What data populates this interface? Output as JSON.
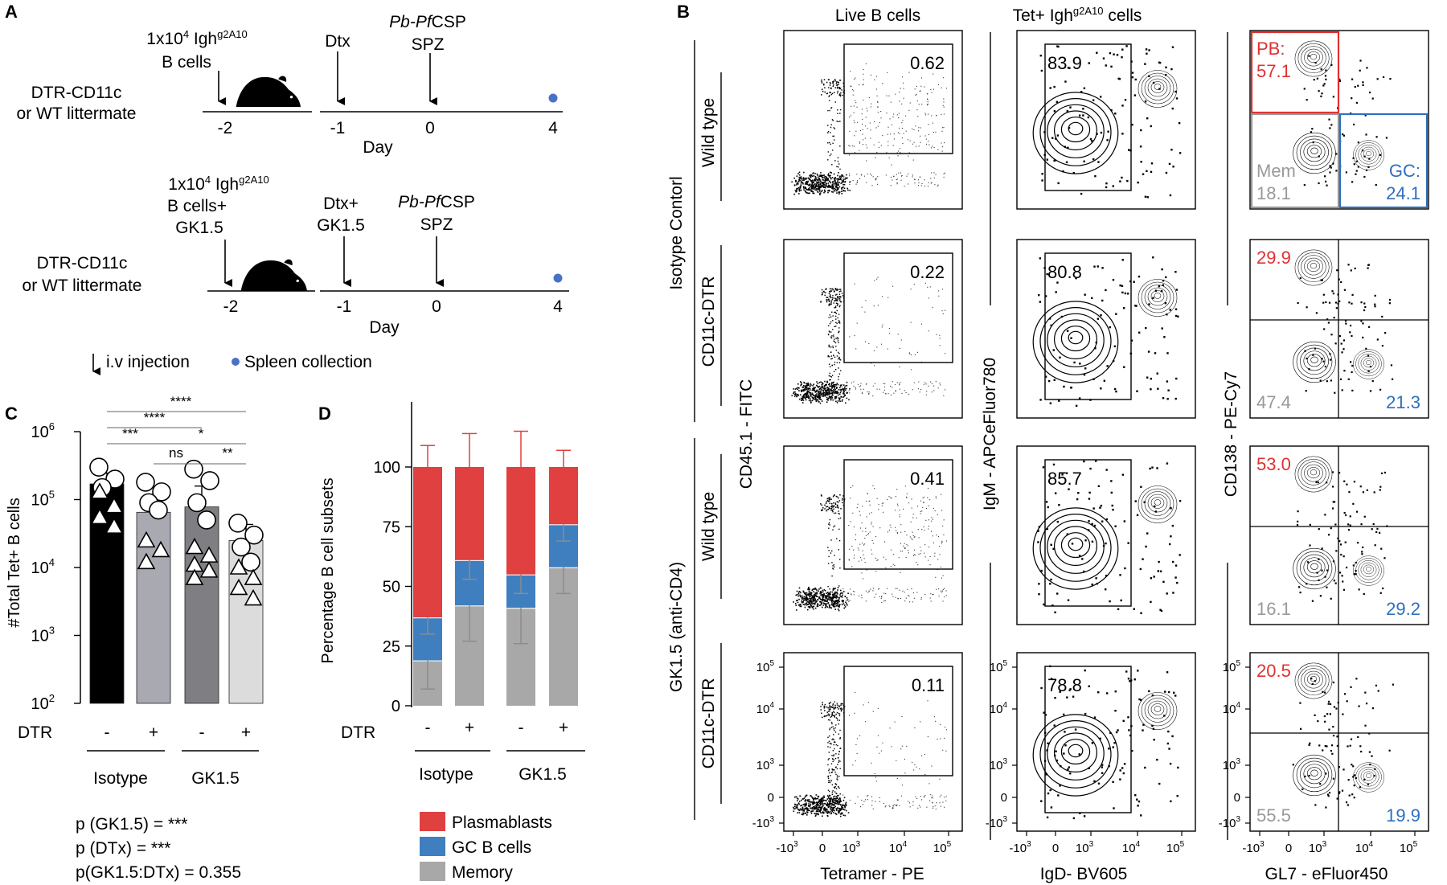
{
  "colors": {
    "plasmablast": "#e04040",
    "gc": "#3f7fbf",
    "memory": "#a8a8a8",
    "pb_text": "#e03030",
    "gc_text": "#2f6fbf",
    "mem_text": "#999999",
    "bar_fill": [
      "#000000",
      "#a9a9b1",
      "#7e7e83",
      "#dcdcdc"
    ]
  },
  "panel_a": {
    "label": "A",
    "protocol1": {
      "mouse_text": [
        "DTR-CD11c",
        "or WT littermate"
      ],
      "cells_line1": "1x10",
      "cells_exp": "4",
      "cells_igh": " Igh",
      "cells_sup": "g2A10",
      "cells_line2": "B cells",
      "dtx": "Dtx",
      "spz_pb": "Pb-",
      "spz_pf": "Pf",
      "spz_csp": "CSP",
      "spz_line2": "SPZ",
      "days": [
        "-2",
        "-1",
        "0",
        "4"
      ],
      "day_label": "Day"
    },
    "protocol2": {
      "mouse_text": [
        "DTR-CD11c",
        "or WT littermate"
      ],
      "cells_line1": "1x10",
      "cells_exp": "4",
      "cells_igh": " Igh",
      "cells_sup": "g2A10",
      "cells_line2": "B cells+",
      "cells_line3": "GK1.5",
      "dtx_line1": "Dtx+",
      "dtx_line2": "GK1.5",
      "spz_pb": "Pb-",
      "spz_pf": "Pf",
      "spz_csp": "CSP",
      "spz_line2": "SPZ",
      "days": [
        "-2",
        "-1",
        "0",
        "4"
      ],
      "day_label": "Day"
    },
    "legend": {
      "injection": "i.v injection",
      "collection": "Spleen collection"
    }
  },
  "panel_c": {
    "label": "C",
    "chart_data": {
      "type": "bar",
      "yscale": "log",
      "ylabel": "#Total Tet+ B cells",
      "ylim": [
        100,
        1000000
      ],
      "ytick_base": "10",
      "ytick_exps": [
        "2",
        "3",
        "4",
        "5",
        "6"
      ],
      "categories": [
        "Isotype -",
        "Isotype +",
        "GK1.5 -",
        "GK1.5 +"
      ],
      "values": [
        170000,
        65000,
        78000,
        25000
      ],
      "errors": [
        75000,
        30000,
        80000,
        18000
      ],
      "circles": [
        [
          300000,
          200000,
          150000
        ],
        [
          180000,
          130000,
          90000,
          70000
        ],
        [
          280000,
          190000,
          90000,
          50000
        ],
        [
          45000,
          30000,
          20000,
          12000
        ]
      ],
      "triangles": [
        [
          130000,
          80000,
          55000,
          40000
        ],
        [
          25000,
          18000,
          12000
        ],
        [
          20000,
          15000,
          11000,
          9000,
          7000
        ],
        [
          10000,
          7000,
          5000,
          3500
        ]
      ],
      "x_label_title": "DTR",
      "x_signs": [
        "-",
        "+",
        "-",
        "+"
      ],
      "groups": [
        "Isotype",
        "GK1.5"
      ],
      "significance": [
        {
          "label": "****"
        },
        {
          "label": "****"
        },
        {
          "label": "***"
        },
        {
          "label": "ns"
        },
        {
          "label": "*"
        },
        {
          "label": "**"
        }
      ],
      "stats": [
        "p (GK1.5) = ***",
        "p (DTx) = ***",
        "p(GK1.5:DTx) = 0.355"
      ]
    }
  },
  "panel_d": {
    "label": "D",
    "chart_data": {
      "type": "bar",
      "stacked": true,
      "ylabel": "Percentage B cell subsets",
      "ylim": [
        0,
        100
      ],
      "yticks": [
        "0",
        "25",
        "50",
        "75",
        "100"
      ],
      "categories": [
        "Isotype -",
        "Isotype +",
        "GK1.5 -",
        "GK1.5 +"
      ],
      "series": [
        {
          "name": "Memory",
          "values": [
            19,
            42,
            41,
            58
          ],
          "errors": [
            12,
            15,
            15,
            11
          ]
        },
        {
          "name": "GC B cells",
          "values": [
            18,
            19,
            14,
            18
          ],
          "errors": [
            7,
            8,
            8,
            7
          ]
        },
        {
          "name": "Plasmablasts",
          "values": [
            63,
            39,
            45,
            24
          ],
          "errors": [
            9,
            14,
            15,
            7
          ]
        }
      ],
      "x_label_title": "DTR",
      "x_signs": [
        "-",
        "+",
        "-",
        "+"
      ],
      "groups": [
        "Isotype",
        "GK1.5"
      ],
      "legend": [
        "Plasmablasts",
        "GC B cells",
        "Memory"
      ]
    }
  },
  "panel_b": {
    "label": "B",
    "col_titles": [
      "Live B cells",
      "Tet+ Igh",
      "g2A10",
      " cells"
    ],
    "row_group_labels": [
      "Isotype Contorl",
      "GK1.5 (anti-CD4)"
    ],
    "row_labels": [
      "Wild type",
      "CD11c-DTR",
      "Wild type",
      "CD11c-DTR"
    ],
    "col1_axes": {
      "y": "CD45.1 - FITC",
      "x": "Tetramer - PE"
    },
    "col2_axes": {
      "y": "IgM - APCeFluor780",
      "x": "IgD- BV605"
    },
    "col3_axes": {
      "y": "CD138 - PE-Cy7",
      "x": "GL7 - eFluor450"
    },
    "tick_labels": {
      "x": [
        "-10",
        "3",
        "0",
        "10",
        "3",
        "10",
        "4",
        "10",
        "5"
      ],
      "y": [
        "10",
        "5",
        "10",
        "4",
        "10",
        "3",
        "0",
        "-10",
        "3"
      ]
    },
    "col1_values": [
      "0.62",
      "0.22",
      "0.41",
      "0.11"
    ],
    "col2_values": [
      "83.9",
      "80.8",
      "85.7",
      "78.8"
    ],
    "col3": [
      {
        "pb_label": "PB:",
        "pb": "57.1",
        "mem_label": "Mem",
        "mem": "18.1",
        "gc_label": "GC:",
        "gc": "24.1"
      },
      {
        "pb": "29.9",
        "mem": "47.4",
        "gc": "21.3"
      },
      {
        "pb": "53.0",
        "mem": "16.1",
        "gc": "29.2"
      },
      {
        "pb": "20.5",
        "mem": "55.5",
        "gc": "19.9"
      }
    ]
  }
}
